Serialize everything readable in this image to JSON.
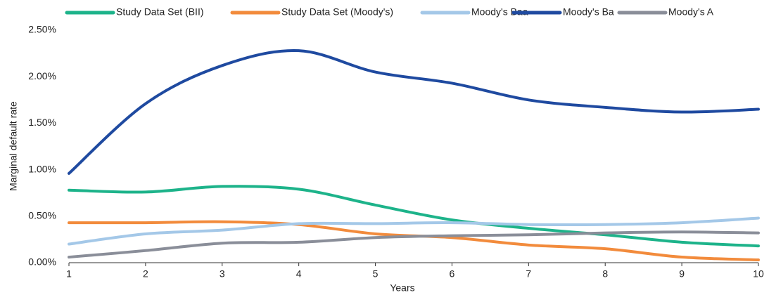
{
  "chart_data": {
    "type": "line",
    "x_label": "Years",
    "y_label": "Marginal default rate",
    "x": [
      1,
      2,
      3,
      4,
      5,
      6,
      7,
      8,
      9,
      10
    ],
    "xlim": [
      1,
      10
    ],
    "xticks": [
      1,
      2,
      3,
      4,
      5,
      6,
      7,
      8,
      9,
      10
    ],
    "ylim": [
      0,
      2.5
    ],
    "yticks": [
      {
        "value": 0,
        "label": "0.00%"
      },
      {
        "value": 0.5,
        "label": "0.50%"
      },
      {
        "value": 1,
        "label": "1.00%"
      },
      {
        "value": 1.5,
        "label": "1.50%"
      },
      {
        "value": 2,
        "label": "2.00%"
      },
      {
        "value": 2.5,
        "label": "2.50%"
      }
    ],
    "grid": false,
    "legend": "top",
    "series": [
      {
        "name": "Study Data Set (BII)",
        "color": "#1db38a",
        "values": [
          0.78,
          0.76,
          0.82,
          0.79,
          0.62,
          0.46,
          0.37,
          0.3,
          0.22,
          0.18
        ]
      },
      {
        "name": "Study Data Set (Moody's)",
        "color": "#f28b3c",
        "values": [
          0.43,
          0.43,
          0.44,
          0.41,
          0.31,
          0.27,
          0.19,
          0.15,
          0.06,
          0.03
        ]
      },
      {
        "name": "Moody's Baa",
        "color": "#a4c8e8",
        "values": [
          0.2,
          0.31,
          0.35,
          0.42,
          0.42,
          0.43,
          0.41,
          0.41,
          0.43,
          0.48
        ]
      },
      {
        "name": "Moody's Ba",
        "color": "#1f4aa0",
        "values": [
          0.96,
          1.71,
          2.12,
          2.28,
          2.05,
          1.93,
          1.75,
          1.67,
          1.62,
          1.65
        ]
      },
      {
        "name": "Moody's A",
        "color": "#8a8e99",
        "values": [
          0.06,
          0.13,
          0.21,
          0.22,
          0.27,
          0.29,
          0.3,
          0.32,
          0.33,
          0.32
        ]
      }
    ]
  }
}
